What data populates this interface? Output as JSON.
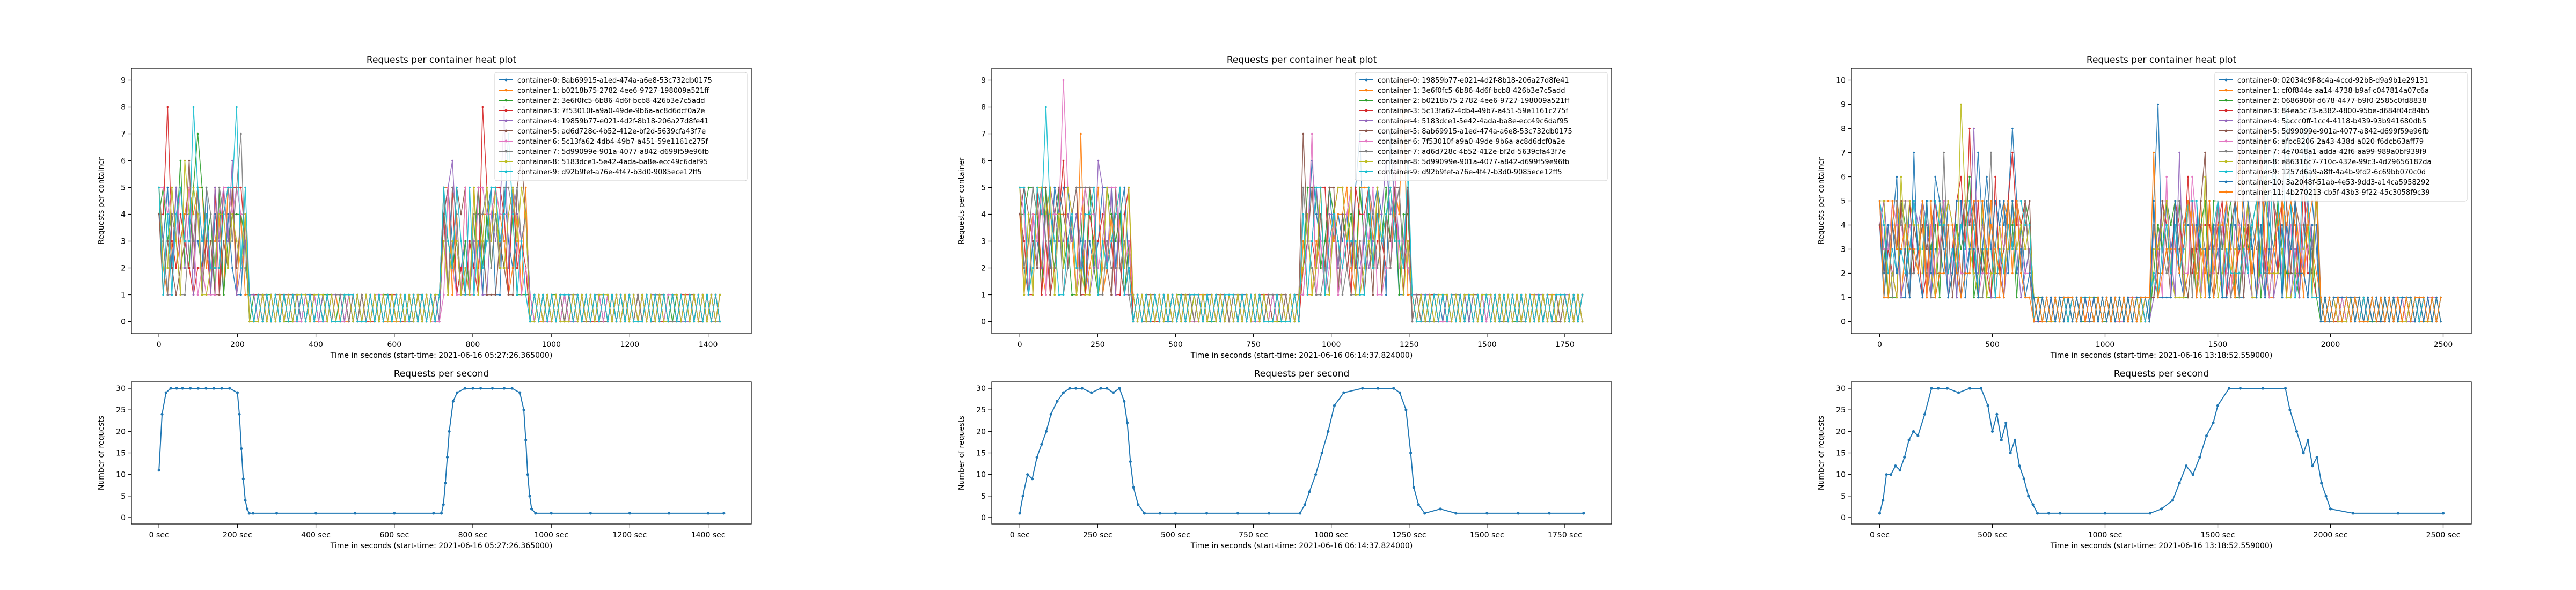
{
  "chart_data": [
    {
      "id": "p1_heat",
      "type": "line",
      "title": "Requests per container heat plot",
      "xlabel": "Time in seconds (start-time: 2021-06-16 05:27:26.365000)",
      "ylabel": "Requests per container",
      "xlim": [
        -70,
        1510
      ],
      "ylim": [
        -0.45,
        9.45
      ],
      "xticks": [
        0,
        200,
        400,
        600,
        800,
        1000,
        1200,
        1400
      ],
      "yticks": [
        0,
        1,
        2,
        3,
        4,
        5,
        6,
        7,
        8,
        9
      ],
      "legend": "top-right",
      "legend_entries": [
        "container-0: 8ab69915-a1ed-474a-a6e8-53c732db0175",
        "container-1: b0218b75-2782-4ee6-9727-198009a521ff",
        "container-2: 3e6f0fc5-6b86-4d6f-bcb8-426b3e7c5add",
        "container-3: 7f53010f-a9a0-49de-9b6a-ac8d6dcf0a2e",
        "container-4: 19859b77-e021-4d2f-8b18-206a27d8fe41",
        "container-5: ad6d728c-4b52-412e-bf2d-5639cfa43f7e",
        "container-6: 5c13fa62-4db4-49b7-a451-59e1161c275f",
        "container-7: 5d99099e-901a-4077-a842-d699f59e96fb",
        "container-8: 5183dce1-5e42-4ada-ba8e-ecc49c6daf95",
        "container-9: d92b9fef-a76e-4f47-b3d0-9085ece12ff5"
      ],
      "colors": [
        "#1f77b4",
        "#ff7f0e",
        "#2ca02c",
        "#d62728",
        "#9467bd",
        "#8c564b",
        "#e377c2",
        "#7f7f7f",
        "#bcbd22",
        "#17becf"
      ],
      "duration": 1440,
      "high_periods": [
        [
          0,
          230
        ],
        [
          720,
          940
        ]
      ],
      "high_level": 3,
      "peak": 8
    },
    {
      "id": "p1_rps",
      "type": "line",
      "title": "Requests per second",
      "xlabel": "Time in seconds (start-time: 2021-06-16 05:27:26.365000)",
      "ylabel": "Number of requests",
      "xlim": [
        -70,
        1510
      ],
      "ylim": [
        -1.5,
        31.5
      ],
      "xticks": [
        0,
        200,
        400,
        600,
        800,
        1000,
        1200,
        1400
      ],
      "xticklabels": [
        "0 sec",
        "200 sec",
        "400 sec",
        "600 sec",
        "800 sec",
        "1000 sec",
        "1200 sec",
        "1400 sec"
      ],
      "yticks": [
        0,
        5,
        10,
        15,
        20,
        25,
        30
      ],
      "x": [
        0,
        8,
        18,
        30,
        45,
        60,
        80,
        100,
        120,
        140,
        160,
        180,
        200,
        205,
        210,
        215,
        220,
        225,
        230,
        240,
        300,
        400,
        500,
        600,
        700,
        720,
        725,
        730,
        735,
        740,
        750,
        760,
        780,
        800,
        820,
        850,
        880,
        900,
        920,
        930,
        935,
        940,
        945,
        950,
        960,
        1000,
        1100,
        1200,
        1300,
        1400,
        1440
      ],
      "y": [
        11,
        24,
        29,
        30,
        30,
        30,
        30,
        30,
        30,
        30,
        30,
        30,
        29,
        24,
        16,
        9,
        4,
        2,
        1,
        1,
        1,
        1,
        1,
        1,
        1,
        1,
        3,
        8,
        14,
        20,
        27,
        29,
        30,
        30,
        30,
        30,
        30,
        30,
        29,
        25,
        18,
        10,
        5,
        2,
        1,
        1,
        1,
        1,
        1,
        1,
        1
      ]
    },
    {
      "id": "p2_heat",
      "type": "line",
      "title": "Requests per container heat plot",
      "xlabel": "Time in seconds (start-time: 2021-06-16 06:14:37.824000)",
      "ylabel": "Requests per container",
      "xlim": [
        -90,
        1900
      ],
      "ylim": [
        -0.45,
        9.45
      ],
      "xticks": [
        0,
        250,
        500,
        750,
        1000,
        1250,
        1500,
        1750
      ],
      "yticks": [
        0,
        1,
        2,
        3,
        4,
        5,
        6,
        7,
        8,
        9
      ],
      "legend": "top-right",
      "legend_entries": [
        "container-0: 19859b77-e021-4d2f-8b18-206a27d8fe41",
        "container-1: 3e6f0fc5-6b86-4d6f-bcb8-426b3e7c5add",
        "container-2: b0218b75-2782-4ee6-9727-198009a521ff",
        "container-3: 5c13fa62-4db4-49b7-a451-59e1161c275f",
        "container-4: 5183dce1-5e42-4ada-ba8e-ecc49c6daf95",
        "container-5: 8ab69915-a1ed-474a-a6e8-53c732db0175",
        "container-6: 7f53010f-a9a0-49de-9b6a-ac8d6dcf0a2e",
        "container-7: ad6d728c-4b52-412e-bf2d-5639cfa43f7e",
        "container-8: 5d99099e-901a-4077-a842-d699f59e96fb",
        "container-9: d92b9fef-a76e-4f47-b3d0-9085ece12ff5"
      ],
      "colors": [
        "#1f77b4",
        "#ff7f0e",
        "#2ca02c",
        "#d62728",
        "#9467bd",
        "#8c564b",
        "#e377c2",
        "#7f7f7f",
        "#bcbd22",
        "#17becf"
      ],
      "duration": 1810,
      "high_periods": [
        [
          0,
          350
        ],
        [
          900,
          1250
        ]
      ],
      "high_level": 3,
      "peak": 9
    },
    {
      "id": "p2_rps",
      "type": "line",
      "title": "Requests per second",
      "xlabel": "Time in seconds (start-time: 2021-06-16 06:14:37.824000)",
      "ylabel": "Number of requests",
      "xlim": [
        -90,
        1900
      ],
      "ylim": [
        -1.5,
        31.5
      ],
      "xticks": [
        0,
        250,
        500,
        750,
        1000,
        1250,
        1500,
        1750
      ],
      "xticklabels": [
        "0 sec",
        "250 sec",
        "500 sec",
        "750 sec",
        "1000 sec",
        "1250 sec",
        "1500 sec",
        "1750 sec"
      ],
      "yticks": [
        0,
        5,
        10,
        15,
        20,
        25,
        30
      ],
      "x": [
        0,
        10,
        25,
        40,
        55,
        70,
        85,
        100,
        120,
        140,
        160,
        180,
        200,
        230,
        260,
        280,
        300,
        320,
        335,
        345,
        355,
        365,
        380,
        400,
        450,
        500,
        600,
        700,
        800,
        900,
        915,
        930,
        950,
        970,
        990,
        1010,
        1040,
        1100,
        1150,
        1200,
        1220,
        1240,
        1255,
        1265,
        1280,
        1300,
        1350,
        1400,
        1500,
        1600,
        1700,
        1810
      ],
      "y": [
        1,
        5,
        10,
        9,
        14,
        17,
        20,
        24,
        27,
        29,
        30,
        30,
        30,
        29,
        30,
        30,
        29,
        30,
        27,
        22,
        13,
        7,
        3,
        1,
        1,
        1,
        1,
        1,
        1,
        1,
        3,
        6,
        10,
        15,
        20,
        26,
        29,
        30,
        30,
        30,
        29,
        25,
        15,
        7,
        3,
        1,
        2,
        1,
        1,
        1,
        1,
        1
      ]
    },
    {
      "id": "p3_heat",
      "type": "line",
      "title": "Requests per container heat plot",
      "xlabel": "Time in seconds (start-time: 2021-06-16 13:18:52.559000)",
      "ylabel": "Requests per container",
      "xlim": [
        -125,
        2625
      ],
      "ylim": [
        -0.5,
        10.5
      ],
      "xticks": [
        0,
        500,
        1000,
        1500,
        2000,
        2500
      ],
      "yticks": [
        0,
        1,
        2,
        3,
        4,
        5,
        6,
        7,
        8,
        9,
        10
      ],
      "legend": "top-right",
      "legend_entries": [
        "container-0: 02034c9f-8c4a-4ccd-92b8-d9a9b1e29131",
        "container-1: cf0f844e-aa14-4738-b9af-c047814a07c6a",
        "container-2: 0686906f-d678-4477-b9f0-2585c0fd8838",
        "container-3: 84ea5c73-a382-4800-95be-d684f04c84b5",
        "container-4: 5accc0ff-1cc4-4118-b439-93b941680db5",
        "container-5: 5d99099e-901a-4077-a842-d699f59e96fb",
        "container-6: afbc8206-2a43-438d-a020-f6dcb63aff79",
        "container-7: 4e7048a1-adda-42f6-aa99-989a0bf939f9",
        "container-8: e86316c7-710c-432e-99c3-4d29656182da",
        "container-9: 1257d6a9-a8ff-4a4b-9fd2-6c69bb070c0d",
        "container-10: 3a2048f-51ab-4e53-9dd3-a14ca5958292",
        "container-11: 4b270213-cb5f-43b3-9f22-45c3058f9c39"
      ],
      "colors": [
        "#1f77b4",
        "#ff7f0e",
        "#2ca02c",
        "#d62728",
        "#9467bd",
        "#8c564b",
        "#e377c2",
        "#7f7f7f",
        "#bcbd22",
        "#17becf",
        "#1f77b4",
        "#ff7f0e"
      ],
      "duration": 2500,
      "high_periods": [
        [
          0,
          680
        ],
        [
          1200,
          1950
        ]
      ],
      "high_level": 3,
      "peak": 10
    },
    {
      "id": "p3_rps",
      "type": "line",
      "title": "Requests per second",
      "xlabel": "Time in seconds (start-time: 2021-06-16 13:18:52.559000)",
      "ylabel": "Number of requests",
      "xlim": [
        -125,
        2625
      ],
      "ylim": [
        -1.5,
        31.5
      ],
      "xticks": [
        0,
        500,
        1000,
        1500,
        2000,
        2500
      ],
      "xticklabels": [
        "0 sec",
        "500 sec",
        "1000 sec",
        "1500 sec",
        "2000 sec",
        "2500 sec"
      ],
      "yticks": [
        0,
        5,
        10,
        15,
        20,
        25,
        30
      ],
      "x": [
        0,
        15,
        30,
        50,
        70,
        90,
        110,
        130,
        150,
        170,
        200,
        230,
        260,
        300,
        350,
        400,
        450,
        480,
        500,
        520,
        540,
        560,
        580,
        600,
        620,
        640,
        660,
        680,
        700,
        750,
        800,
        1000,
        1200,
        1250,
        1300,
        1330,
        1360,
        1390,
        1420,
        1450,
        1480,
        1500,
        1550,
        1600,
        1700,
        1800,
        1820,
        1850,
        1880,
        1900,
        1920,
        1940,
        1960,
        1980,
        2000,
        2100,
        2300,
        2500
      ],
      "y": [
        1,
        4,
        10,
        10,
        12,
        11,
        14,
        18,
        20,
        19,
        24,
        30,
        30,
        30,
        29,
        30,
        30,
        26,
        20,
        24,
        18,
        22,
        15,
        18,
        12,
        9,
        5,
        3,
        1,
        1,
        1,
        1,
        1,
        2,
        4,
        8,
        12,
        10,
        14,
        19,
        22,
        26,
        30,
        30,
        30,
        30,
        25,
        20,
        15,
        18,
        12,
        14,
        8,
        5,
        2,
        1,
        1,
        1
      ]
    }
  ]
}
